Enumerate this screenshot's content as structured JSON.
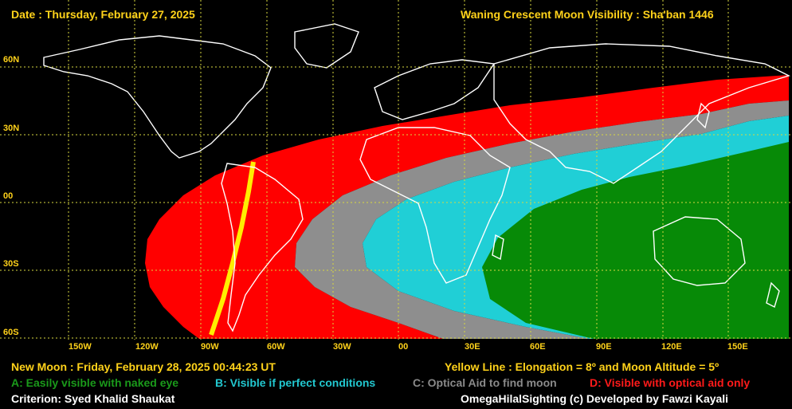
{
  "header": {
    "date": "Date : Thursday, February 27, 2025",
    "title": "Waning Crescent Moon Visibility : Sha'ban 1446"
  },
  "axes": {
    "lat_labels": [
      "60N",
      "30N",
      "00",
      "30S",
      "60S"
    ],
    "lon_labels": [
      "150W",
      "120W",
      "90W",
      "60W",
      "30W",
      "00",
      "30E",
      "60E",
      "90E",
      "120E",
      "150E"
    ]
  },
  "footer": {
    "new_moon": "New Moon : Friday, February 28, 2025  00:44:23  UT",
    "yellow_line": "Yellow Line : Elongation = 8º  and Moon Altitude = 5º",
    "criterion": "Criterion: Syed Khalid Shaukat",
    "credit": "OmegaHilalSighting  (c)  Developed by Fawzi Kayali"
  },
  "legend": [
    {
      "code": "A",
      "label": "A: Easily visible with naked eye",
      "color": "#1a9a1a"
    },
    {
      "code": "B",
      "label": "B: Visible if perfect conditions",
      "color": "#22c8d0"
    },
    {
      "code": "C",
      "label": "C: Optical Aid to find moon",
      "color": "#8a8a8a"
    },
    {
      "code": "D",
      "label": "D: Visible with optical aid only",
      "color": "#ff1a1a"
    }
  ],
  "colors": {
    "zone_a": "#078a07",
    "zone_b": "#20cfd6",
    "zone_c": "#8e8e8e",
    "zone_d": "#ff0000",
    "yellow_line": "#ffee00",
    "grid": "#d8d840",
    "coast": "#ffffff"
  }
}
